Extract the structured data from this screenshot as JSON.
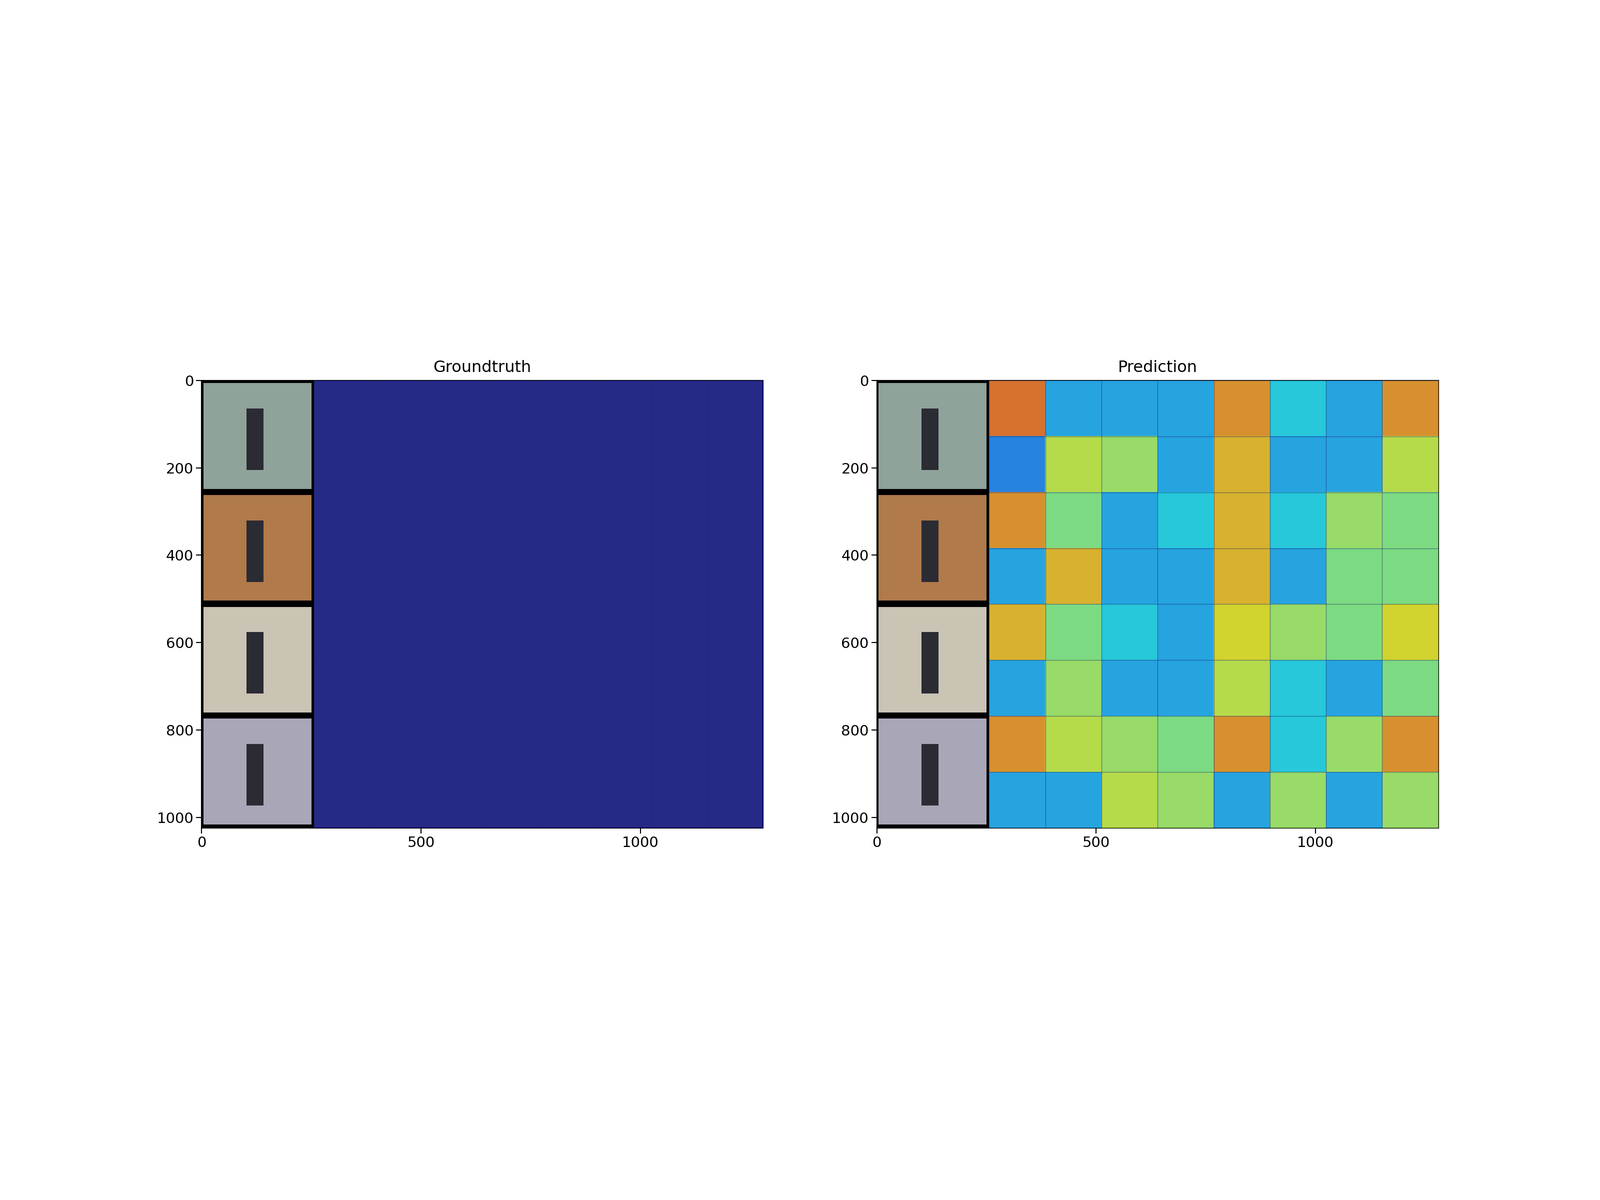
{
  "chart_data": [
    {
      "type": "heatmap",
      "title": "Groundtruth",
      "xlim": [
        0,
        1280
      ],
      "ylim": [
        1024,
        0
      ],
      "xticks": [
        0,
        500,
        1000
      ],
      "yticks": [
        0,
        200,
        400,
        600,
        800,
        1000
      ],
      "color_range": [
        0,
        1
      ],
      "cells": [
        [
          0,
          0,
          0,
          0,
          0,
          0,
          0,
          0
        ],
        [
          0,
          0,
          0,
          0,
          0,
          0,
          0,
          0
        ],
        [
          0,
          0,
          0,
          0,
          0,
          0,
          0,
          0
        ],
        [
          0,
          0,
          0,
          0,
          0,
          0,
          0,
          0
        ],
        [
          0,
          0,
          0,
          0,
          0,
          0,
          0,
          0
        ],
        [
          0,
          0,
          0,
          0,
          0,
          0,
          0,
          0
        ],
        [
          0,
          0,
          0,
          0,
          0,
          0,
          0,
          0
        ],
        [
          0,
          0,
          0,
          0,
          0,
          0,
          0,
          0
        ]
      ]
    },
    {
      "type": "heatmap",
      "title": "Prediction",
      "xlim": [
        0,
        1280
      ],
      "ylim": [
        1024,
        0
      ],
      "xticks": [
        0,
        500,
        1000
      ],
      "yticks": [
        0,
        200,
        400,
        600,
        800,
        1000
      ],
      "color_range": [
        0,
        1
      ],
      "cells": [
        [
          0.8,
          0.3,
          0.3,
          0.3,
          0.75,
          0.35,
          0.3,
          0.75
        ],
        [
          0.25,
          0.6,
          0.55,
          0.3,
          0.7,
          0.3,
          0.3,
          0.6
        ],
        [
          0.75,
          0.5,
          0.3,
          0.35,
          0.7,
          0.35,
          0.55,
          0.5
        ],
        [
          0.3,
          0.7,
          0.3,
          0.3,
          0.7,
          0.3,
          0.5,
          0.5
        ],
        [
          0.7,
          0.5,
          0.35,
          0.3,
          0.65,
          0.55,
          0.5,
          0.65
        ],
        [
          0.3,
          0.55,
          0.3,
          0.3,
          0.6,
          0.35,
          0.3,
          0.5
        ],
        [
          0.75,
          0.6,
          0.55,
          0.5,
          0.75,
          0.35,
          0.55,
          0.75
        ],
        [
          0.3,
          0.3,
          0.6,
          0.55,
          0.3,
          0.55,
          0.3,
          0.55
        ]
      ]
    }
  ]
}
